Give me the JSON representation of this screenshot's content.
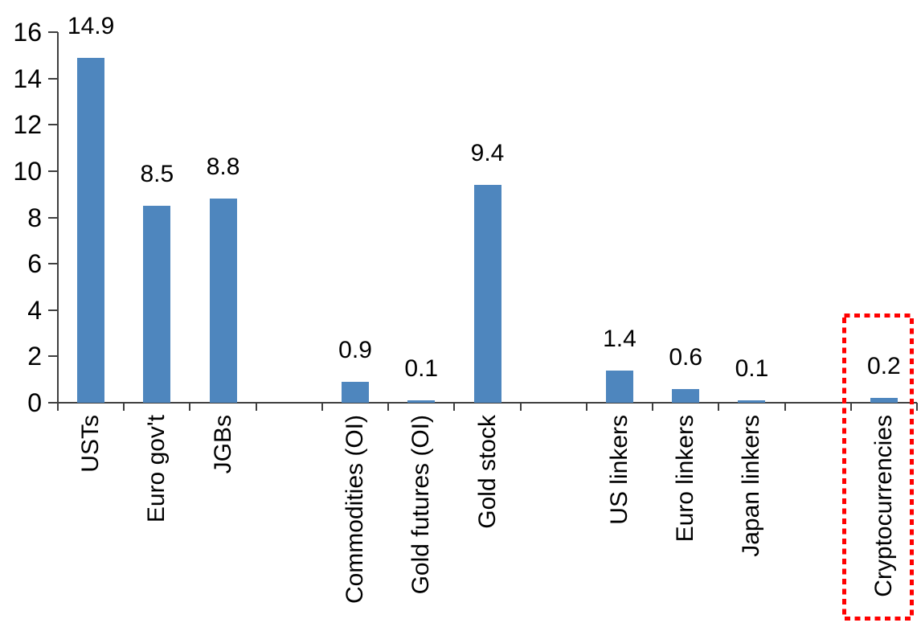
{
  "chart_data": {
    "type": "bar",
    "title": "",
    "xlabel": "",
    "ylabel": "",
    "categories": [
      "USTs",
      "Euro gov't",
      "JGBs",
      "Commodities (OI)",
      "Gold futures (OI)",
      "Gold stock",
      "US linkers",
      "Euro linkers",
      "Japan linkers",
      "Cryptocurrencies"
    ],
    "values": [
      14.9,
      8.5,
      8.8,
      0.9,
      0.1,
      9.4,
      1.4,
      0.6,
      0.1,
      0.2
    ],
    "data_labels": [
      "14.9",
      "8.5",
      "8.8",
      "0.9",
      "0.1",
      "9.4",
      "1.4",
      "0.6",
      "0.1",
      "0.2"
    ],
    "ylim": [
      0,
      16
    ],
    "yticks": [
      0,
      2,
      4,
      6,
      8,
      10,
      12,
      14,
      16
    ],
    "grid": false,
    "legend": false,
    "layout_hints": {
      "n_slots": 13,
      "slot_indices": [
        0,
        1,
        2,
        4,
        5,
        6,
        8,
        9,
        10,
        12
      ],
      "category_label_rotation_deg": 90
    },
    "bar_color": "#4E86BE",
    "axis_color": "#3F3F3F",
    "label_color": "#000000",
    "highlight": {
      "category": "Cryptocurrencies",
      "style": "red-dotted-box",
      "color": "#FF0000"
    }
  }
}
